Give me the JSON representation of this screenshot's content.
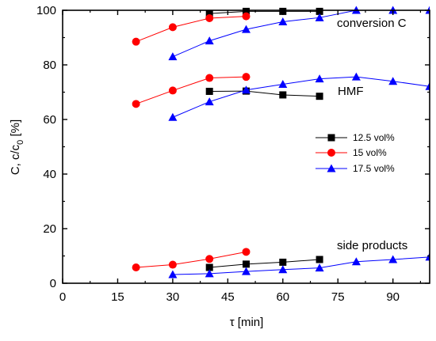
{
  "chart_data": {
    "type": "line",
    "title": "",
    "xlabel": "τ [min]",
    "ylabel": "C, c/c0 [%]",
    "ylabel_parts": {
      "main": "C, c/c",
      "sub": "0",
      "unit": " [%]"
    },
    "xlim": [
      0,
      100
    ],
    "ylim": [
      0,
      100
    ],
    "xticks": [
      0,
      15,
      30,
      45,
      60,
      75,
      90
    ],
    "yticks": [
      0,
      20,
      40,
      60,
      80,
      100
    ],
    "grid": false,
    "legend": {
      "position": "center-right"
    },
    "annotations": [
      {
        "text": "conversion C",
        "x": 87,
        "y": 96
      },
      {
        "text": "HMF",
        "x": 76,
        "y": 70
      },
      {
        "text": "side products",
        "x": 84,
        "y": 12
      }
    ],
    "series": [
      {
        "name": "12.5 vol%",
        "color": "#000000",
        "marker": "square",
        "groups": [
          {
            "label": "conversion C",
            "x": [
              40,
              50,
              60,
              70
            ],
            "y": [
              98.8,
              99.6,
              99.6,
              99.6
            ]
          },
          {
            "label": "HMF",
            "x": [
              40,
              50,
              60,
              70
            ],
            "y": [
              70.3,
              70.4,
              69.0,
              68.5
            ]
          },
          {
            "label": "side products",
            "x": [
              40,
              50,
              60,
              70
            ],
            "y": [
              5.8,
              7.0,
              7.7,
              8.7
            ]
          }
        ]
      },
      {
        "name": "15 vol%",
        "color": "#ff0000",
        "marker": "circle",
        "groups": [
          {
            "label": "conversion C",
            "x": [
              20,
              30,
              40,
              50
            ],
            "y": [
              88.5,
              93.8,
              97.1,
              97.8
            ]
          },
          {
            "label": "HMF",
            "x": [
              20,
              30,
              40,
              50
            ],
            "y": [
              65.7,
              70.6,
              75.2,
              75.6
            ]
          },
          {
            "label": "side products",
            "x": [
              20,
              30,
              40,
              50
            ],
            "y": [
              5.8,
              6.8,
              8.9,
              11.5
            ]
          }
        ]
      },
      {
        "name": "17.5 vol%",
        "color": "#0000ff",
        "marker": "triangle",
        "groups": [
          {
            "label": "conversion C",
            "x": [
              30,
              40,
              50,
              60,
              70,
              80,
              90,
              100
            ],
            "y": [
              83.0,
              88.8,
              93.0,
              95.8,
              97.3,
              100,
              100,
              100
            ]
          },
          {
            "label": "HMF",
            "x": [
              30,
              40,
              50,
              60,
              70,
              80,
              90,
              100
            ],
            "y": [
              60.8,
              66.5,
              70.8,
              72.9,
              74.9,
              75.6,
              74.0,
              72.1
            ]
          },
          {
            "label": "side products",
            "x": [
              30,
              40,
              50,
              60,
              70,
              80,
              90,
              100
            ],
            "y": [
              3.2,
              3.5,
              4.3,
              5.0,
              5.6,
              7.9,
              8.7,
              9.6
            ]
          }
        ]
      }
    ]
  }
}
